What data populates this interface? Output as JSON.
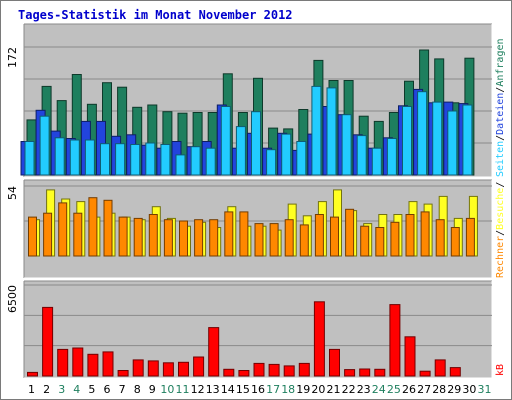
{
  "chart_data": {
    "type": "bar",
    "title": "Tages-Statistik im Monat November 2012",
    "days": [
      "1",
      "2",
      "3",
      "4",
      "5",
      "6",
      "7",
      "8",
      "9",
      "10",
      "11",
      "12",
      "13",
      "14",
      "15",
      "16",
      "17",
      "18",
      "19",
      "20",
      "21",
      "22",
      "23",
      "24",
      "25",
      "26",
      "27",
      "28",
      "29",
      "30",
      "31"
    ],
    "weekend_days": [
      "3",
      "4",
      "10",
      "11",
      "17",
      "18",
      "24",
      "25",
      "31"
    ],
    "top_panel": {
      "ylabel_max": "172",
      "ymax": 172,
      "series": [
        {
          "name": "Anfragen",
          "color": "#1e7f5e",
          "values": [
            74,
            119,
            100,
            135,
            95,
            124,
            118,
            91,
            94,
            85,
            83,
            84,
            84,
            136,
            84,
            130,
            63,
            62,
            88,
            154,
            127,
            127,
            79,
            72,
            84,
            126,
            168,
            156,
            97,
            157,
            0
          ]
        },
        {
          "name": "Dateien",
          "color": "#2244dd",
          "values": [
            45,
            87,
            59,
            49,
            72,
            72,
            52,
            54,
            40,
            36,
            45,
            38,
            45,
            94,
            36,
            56,
            36,
            56,
            33,
            55,
            92,
            81,
            54,
            36,
            50,
            93,
            115,
            97,
            98,
            96,
            0
          ]
        },
        {
          "name": "Seiten",
          "color": "#22ccff",
          "values": [
            45,
            79,
            50,
            47,
            47,
            42,
            42,
            41,
            43,
            41,
            27,
            38,
            36,
            92,
            65,
            85,
            34,
            55,
            45,
            119,
            117,
            81,
            53,
            36,
            49,
            92,
            112,
            98,
            86,
            94,
            0
          ]
        }
      ]
    },
    "middle_panel": {
      "ylabel_max": "54",
      "ymax": 54,
      "series": [
        {
          "name": "Besuche",
          "color": "#ffff22",
          "values": [
            28,
            51,
            44,
            42,
            30,
            33,
            30,
            28,
            38,
            29,
            23,
            26,
            22,
            38,
            23,
            23,
            20,
            40,
            31,
            42,
            51,
            35,
            25,
            32,
            32,
            42,
            40,
            46,
            29,
            46,
            0
          ]
        },
        {
          "name": "Rechner",
          "color": "#ff8800",
          "values": [
            30,
            33,
            41,
            33,
            45,
            43,
            30,
            29,
            32,
            28,
            27,
            28,
            28,
            34,
            34,
            25,
            25,
            28,
            24,
            32,
            30,
            36,
            23,
            22,
            26,
            32,
            34,
            28,
            22,
            29,
            0
          ]
        }
      ]
    },
    "bottom_panel": {
      "ylabel_max": "6500",
      "ymax": 6500,
      "series": [
        {
          "name": "kB",
          "color": "#ff0000",
          "values": [
            260,
            4900,
            1900,
            1999,
            1550,
            1720,
            390,
            1150,
            1080,
            940,
            980,
            1360,
            3460,
            480,
            390,
            900,
            830,
            720,
            900,
            5300,
            1900,
            460,
            500,
            480,
            5100,
            2800,
            340,
            1150,
            600,
            0,
            0
          ]
        }
      ]
    },
    "right_labels": {
      "anfragen": "Anfragen",
      "dateien": "Dateien",
      "seiten": "Seiten",
      "besuche": "Besuche",
      "rechner": "Rechner",
      "kb": "kB",
      "sep": "/"
    },
    "colors": {
      "panel_bg": "#c0c0c0",
      "grid": "#8a8a8a",
      "weekday_label": "#000000",
      "weekend_label": "#1e7f5e"
    }
  }
}
